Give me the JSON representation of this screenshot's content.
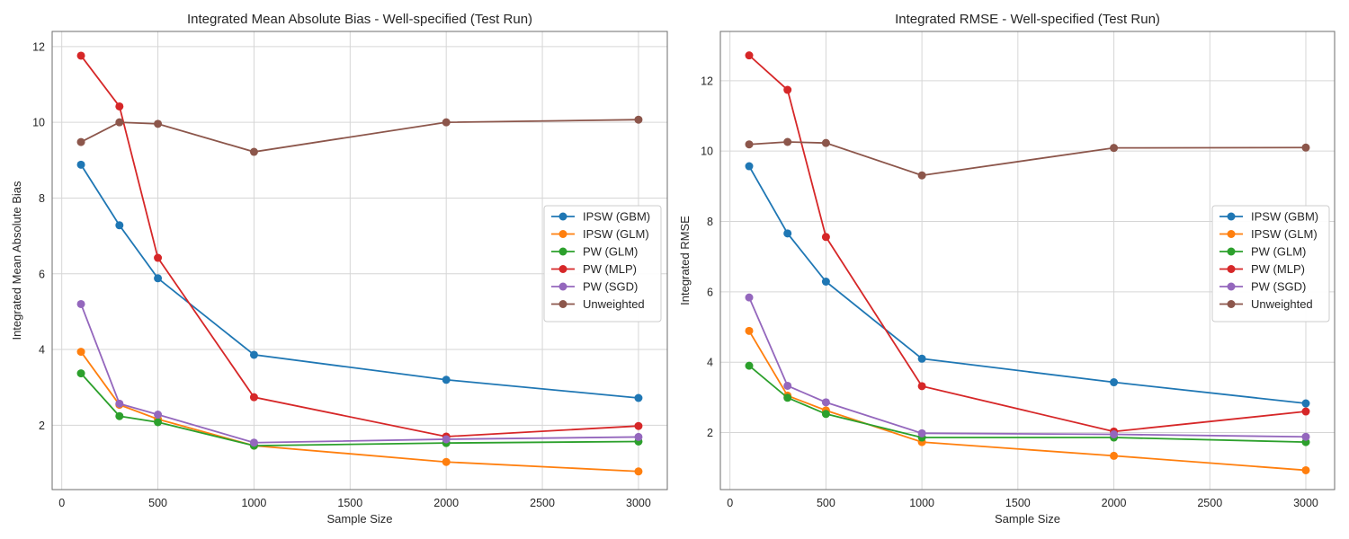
{
  "chart_data": [
    {
      "type": "line",
      "title": "Integrated Mean Absolute Bias - Well-specified (Test Run)",
      "xlabel": "Sample Size",
      "ylabel": "Integrated Mean Absolute Bias",
      "xlim": [
        -50,
        3150
      ],
      "ylim": [
        0.3,
        12.4
      ],
      "xticks": [
        0,
        500,
        1000,
        1500,
        2000,
        2500,
        3000
      ],
      "yticks": [
        2,
        4,
        6,
        8,
        10,
        12
      ],
      "grid": true,
      "legend_position": "center-right",
      "x": [
        100,
        300,
        500,
        1000,
        2000,
        3000
      ],
      "series": [
        {
          "name": "IPSW (GBM)",
          "color": "#1f77b4",
          "values": [
            8.88,
            7.28,
            5.88,
            3.86,
            3.2,
            2.72
          ]
        },
        {
          "name": "IPSW (GLM)",
          "color": "#ff7f0e",
          "values": [
            3.94,
            2.54,
            2.16,
            1.46,
            1.03,
            0.78
          ]
        },
        {
          "name": "PW (GLM)",
          "color": "#2ca02c",
          "values": [
            3.37,
            2.24,
            2.08,
            1.46,
            1.53,
            1.57
          ]
        },
        {
          "name": "PW (MLP)",
          "color": "#d62728",
          "values": [
            11.76,
            10.42,
            6.42,
            2.74,
            1.7,
            1.98
          ]
        },
        {
          "name": "PW (SGD)",
          "color": "#9467bd",
          "values": [
            5.2,
            2.57,
            2.28,
            1.54,
            1.63,
            1.69
          ]
        },
        {
          "name": "Unweighted",
          "color": "#8c564b",
          "values": [
            9.48,
            10.0,
            9.96,
            9.22,
            10.0,
            10.07
          ]
        }
      ]
    },
    {
      "type": "line",
      "title": "Integrated RMSE - Well-specified (Test Run)",
      "xlabel": "Sample Size",
      "ylabel": "Integrated RMSE",
      "xlim": [
        -50,
        3150
      ],
      "ylim": [
        0.38,
        13.4
      ],
      "xticks": [
        0,
        500,
        1000,
        1500,
        2000,
        2500,
        3000
      ],
      "yticks": [
        2,
        4,
        6,
        8,
        10,
        12
      ],
      "grid": true,
      "legend_position": "center-right",
      "x": [
        100,
        300,
        500,
        1000,
        2000,
        3000
      ],
      "series": [
        {
          "name": "IPSW (GBM)",
          "color": "#1f77b4",
          "values": [
            9.57,
            7.66,
            6.29,
            4.1,
            3.43,
            2.83
          ]
        },
        {
          "name": "IPSW (GLM)",
          "color": "#ff7f0e",
          "values": [
            4.89,
            3.05,
            2.63,
            1.73,
            1.34,
            0.93
          ]
        },
        {
          "name": "PW (GLM)",
          "color": "#2ca02c",
          "values": [
            3.9,
            2.99,
            2.53,
            1.86,
            1.86,
            1.73
          ]
        },
        {
          "name": "PW (MLP)",
          "color": "#d62728",
          "values": [
            12.72,
            11.74,
            7.56,
            3.32,
            2.03,
            2.6
          ]
        },
        {
          "name": "PW (SGD)",
          "color": "#9467bd",
          "values": [
            5.84,
            3.33,
            2.86,
            1.98,
            1.95,
            1.88
          ]
        },
        {
          "name": "Unweighted",
          "color": "#8c564b",
          "values": [
            10.19,
            10.26,
            10.23,
            9.31,
            10.09,
            10.1
          ]
        }
      ]
    }
  ]
}
